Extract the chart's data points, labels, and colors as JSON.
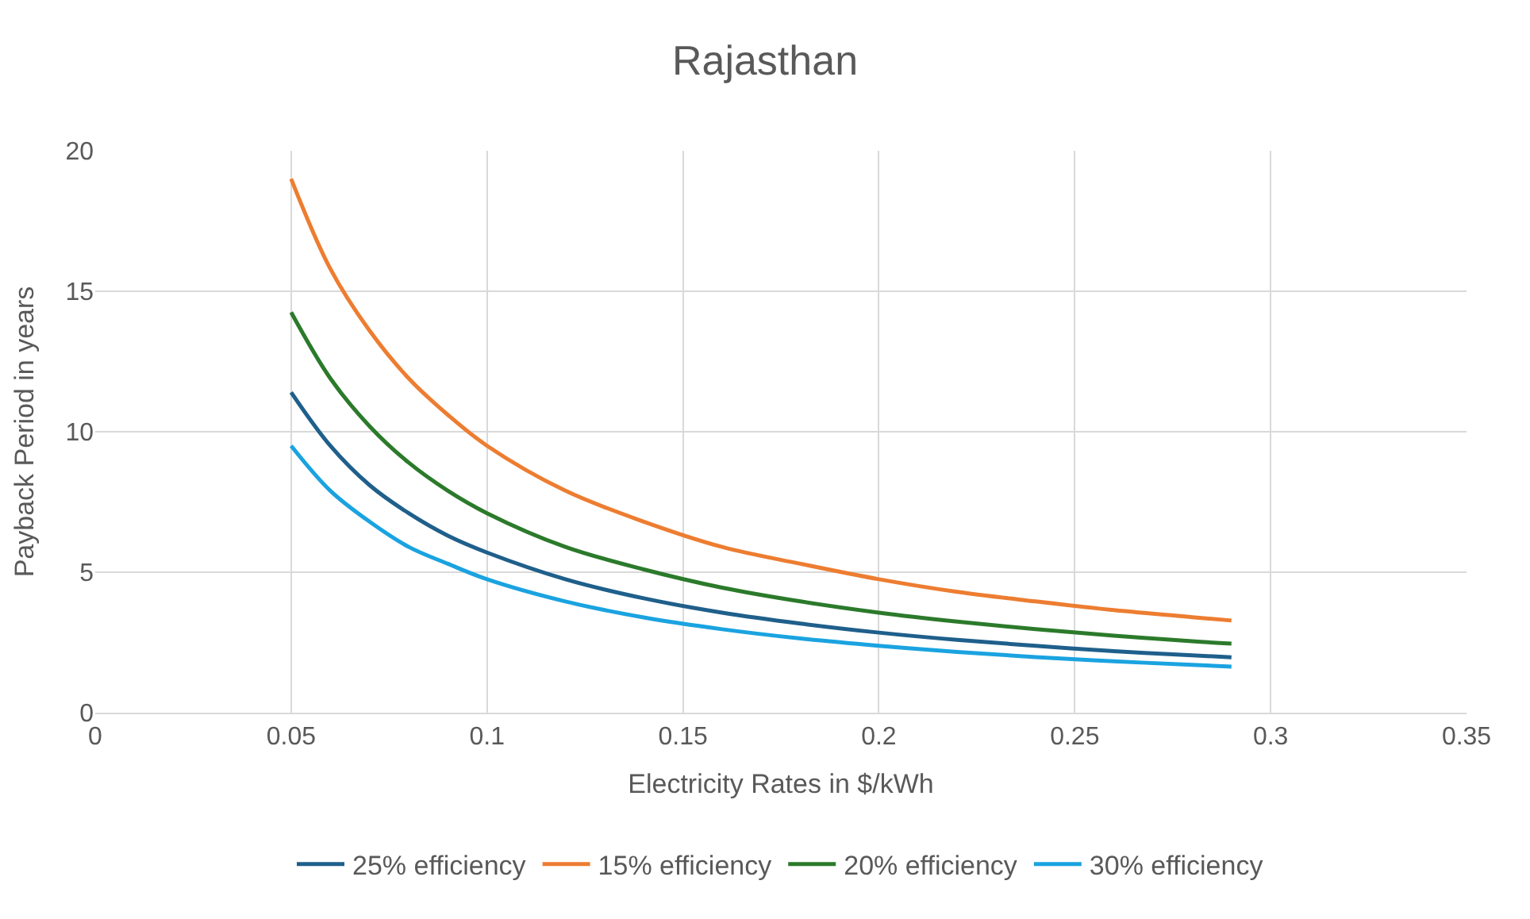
{
  "chart_data": {
    "type": "line",
    "title": "Rajasthan",
    "xlabel": "Electricity Rates in $/kWh",
    "ylabel": "Payback Period in years",
    "x": [
      0.05,
      0.06,
      0.07,
      0.08,
      0.09,
      0.1,
      0.12,
      0.14,
      0.16,
      0.18,
      0.2,
      0.22,
      0.24,
      0.26,
      0.28,
      0.29
    ],
    "series": [
      {
        "name": "25% efficiency",
        "color": "#1f5f8b",
        "values": [
          11.4,
          9.5,
          8.1,
          7.1,
          6.3,
          5.7,
          4.75,
          4.07,
          3.56,
          3.17,
          2.85,
          2.59,
          2.38,
          2.19,
          2.04,
          1.97
        ]
      },
      {
        "name": "15% efficiency",
        "color": "#ed7d31",
        "values": [
          19,
          15.8,
          13.6,
          11.9,
          10.6,
          9.5,
          7.9,
          6.8,
          5.9,
          5.3,
          4.75,
          4.3,
          3.96,
          3.65,
          3.4,
          3.28
        ]
      },
      {
        "name": "20% efficiency",
        "color": "#2b7a2b",
        "values": [
          14.25,
          11.9,
          10.2,
          8.9,
          7.9,
          7.1,
          5.9,
          5.1,
          4.45,
          3.96,
          3.56,
          3.24,
          2.97,
          2.74,
          2.54,
          2.46
        ]
      },
      {
        "name": "30% efficiency",
        "color": "#1aa3e0",
        "values": [
          9.5,
          7.9,
          6.8,
          5.9,
          5.3,
          4.75,
          3.96,
          3.39,
          2.97,
          2.64,
          2.38,
          2.16,
          1.98,
          1.83,
          1.7,
          1.64
        ]
      }
    ],
    "xlim": [
      0,
      0.35
    ],
    "xticks": [
      0,
      0.05,
      0.1,
      0.15,
      0.2,
      0.25,
      0.3,
      0.35
    ],
    "ylim": [
      0,
      20
    ],
    "yticks": [
      0,
      5,
      10,
      15,
      20
    ],
    "grid": true,
    "legend": "bottom",
    "marker": "none",
    "line_style": "solid"
  }
}
